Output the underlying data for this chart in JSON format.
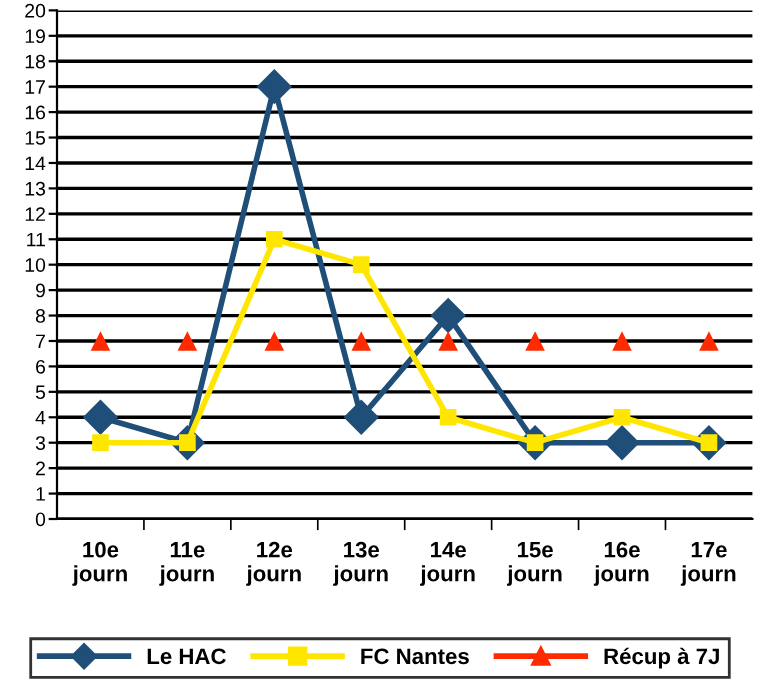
{
  "chart_data": {
    "type": "line",
    "categories": [
      "10e\njourn",
      "11e\njourn",
      "12e\njourn",
      "13e\njourn",
      "14e\njourn",
      "15e\njourn",
      "16e\njourn",
      "17e\njourn"
    ],
    "series": [
      {
        "name": "Le HAC",
        "color": "#1f4e79",
        "marker": "diamond",
        "values": [
          4,
          3,
          17,
          4,
          8,
          3,
          3,
          3
        ]
      },
      {
        "name": "FC Nantes",
        "color": "#ffe600",
        "marker": "square",
        "values": [
          3,
          3,
          11,
          10,
          4,
          3,
          4,
          3
        ]
      },
      {
        "name": "Récup à 7J",
        "type": "scatter",
        "color": "#ff2a00",
        "marker": "triangle",
        "values": [
          7,
          7,
          7,
          7,
          7,
          7,
          7,
          7
        ]
      }
    ],
    "ylim": [
      0,
      20
    ],
    "yticks": [
      0,
      1,
      2,
      3,
      4,
      5,
      6,
      7,
      8,
      9,
      10,
      11,
      12,
      13,
      14,
      15,
      16,
      17,
      18,
      19,
      20
    ],
    "grid": "y",
    "legend": "bottom"
  }
}
